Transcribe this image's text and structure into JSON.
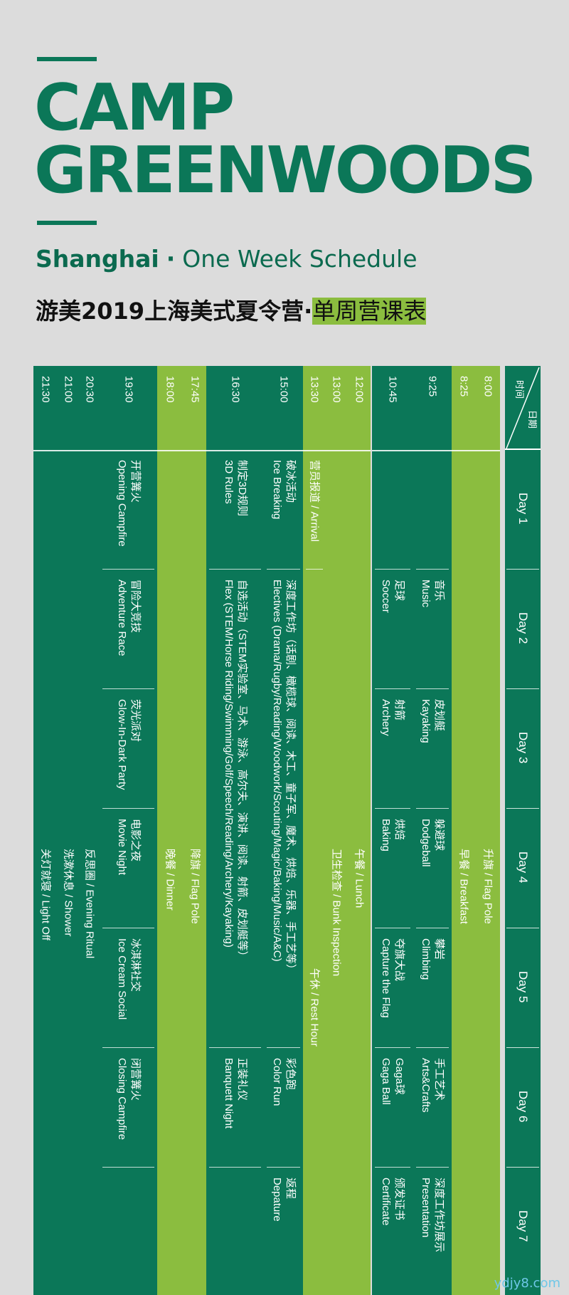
{
  "header": {
    "title_line1": "CAMP",
    "title_line2": "GREENWOODS",
    "city": "Shanghai",
    "dot": "·",
    "subtitle": "One Week Schedule",
    "cn_title": "游美2019上海美式夏令营",
    "cn_dot": "·",
    "cn_subtitle": "单周营课表"
  },
  "grid": {
    "corner_time": "时间",
    "corner_date": "日期",
    "days": [
      "Day 1",
      "Day 2",
      "Day 3",
      "Day 4",
      "Day 5",
      "Day 6",
      "Day 7"
    ],
    "columns": [
      {
        "time": "8:00",
        "color": "light",
        "cells": [
          {
            "span": [
              0,
              7
            ],
            "text": "",
            "offset": 2,
            "line1": "升旗 / Flag Pole"
          }
        ]
      },
      {
        "time": "8:25",
        "color": "light",
        "cells": [
          {
            "span": [
              0,
              7
            ],
            "text": "",
            "offset": 2,
            "line1": "早餐 / Breakfast"
          }
        ]
      },
      {
        "time": "9:25",
        "color": "dark",
        "cells": [
          {
            "span": [
              0,
              1
            ],
            "line1": ""
          },
          {
            "span": [
              1,
              2
            ],
            "line1": "音乐",
            "line2": "Music"
          },
          {
            "span": [
              2,
              3
            ],
            "line1": "皮划艇",
            "line2": "Kayaking"
          },
          {
            "span": [
              3,
              4
            ],
            "line1": "躲避球",
            "line2": "Dodgeball"
          },
          {
            "span": [
              4,
              5
            ],
            "line1": "攀岩",
            "line2": "Climbing"
          },
          {
            "span": [
              5,
              6
            ],
            "line1": "手工艺术",
            "line2": "Arts&Crafts"
          },
          {
            "span": [
              6,
              7
            ],
            "line1": "深度工作坊展示",
            "line2": "Presentation"
          }
        ]
      },
      {
        "time": "10:45",
        "color": "dark",
        "cells": [
          {
            "span": [
              0,
              1
            ],
            "line1": ""
          },
          {
            "span": [
              1,
              2
            ],
            "line1": "足球",
            "line2": "Soccer"
          },
          {
            "span": [
              2,
              3
            ],
            "line1": "射箭",
            "line2": "Archery"
          },
          {
            "span": [
              3,
              4
            ],
            "line1": "烘焙",
            "line2": "Baking"
          },
          {
            "span": [
              4,
              5
            ],
            "line1": "夺旗大战",
            "line2": "Capture the Flag"
          },
          {
            "span": [
              5,
              6
            ],
            "line1": "Gaga球",
            "line2": "Gaga Ball"
          },
          {
            "span": [
              6,
              7
            ],
            "line1": "颁发证书",
            "line2": "Certificate"
          }
        ]
      },
      {
        "time": "12:00",
        "color": "light",
        "cells": [
          {
            "span": [
              0,
              7
            ],
            "offset": 2,
            "line1": "午餐 / Lunch"
          }
        ]
      },
      {
        "time": "13:00",
        "color": "light",
        "cells": [
          {
            "span": [
              0,
              7
            ],
            "offset": 2,
            "line1": "卫生检查 / Bunk Inspection"
          }
        ]
      },
      {
        "time": "13:30",
        "color": "light",
        "cells": [
          {
            "span": [
              0,
              1
            ],
            "line1": "营员报道 / Arrival"
          },
          {
            "span": [
              1,
              7
            ],
            "offset": 2,
            "line1": "午休 / Rest Hour"
          }
        ]
      },
      {
        "time": "15:00",
        "color": "dark",
        "cells": [
          {
            "span": [
              0,
              1
            ],
            "line1": "破冰活动",
            "line2": "Ice Breaking"
          },
          {
            "span": [
              1,
              5
            ],
            "line1": "深度工作坊（话剧、橄榄球、阅读、木工、童子军、魔术、烘焙、乐器、手工艺等）",
            "line2": "Electives (Drama/Rugby/Reading/Woodwork/Scouting/Magic/Baking/Music/A&C)"
          },
          {
            "span": [
              5,
              6
            ],
            "line1": "彩色跑",
            "line2": "Color Run"
          },
          {
            "span": [
              6,
              7
            ],
            "line1": "返程",
            "line2": "Depature"
          }
        ]
      },
      {
        "time": "16:30",
        "color": "dark",
        "cells": [
          {
            "span": [
              0,
              1
            ],
            "line1": "制定3D规则",
            "line2": "3D Rules"
          },
          {
            "span": [
              1,
              5
            ],
            "line1": "自选活动（STEM实验室、马术、游泳、高尔夫、演讲、阅读、射箭、皮划艇等）",
            "line2": "Flex (STEM/Horse Riding/Swimming/Golf/Speech/Reading/Archery/Kayaking)"
          },
          {
            "span": [
              5,
              6
            ],
            "line1": "正装礼仪",
            "line2": "Banquett Night"
          },
          {
            "span": [
              6,
              7
            ],
            "line1": ""
          }
        ]
      },
      {
        "time": "17:45",
        "color": "light",
        "cells": [
          {
            "span": [
              0,
              7
            ],
            "offset": 2,
            "line1": "降旗 / Flag Pole"
          }
        ]
      },
      {
        "time": "18:00",
        "color": "light",
        "cells": [
          {
            "span": [
              0,
              7
            ],
            "offset": 2,
            "line1": "晚餐 / Dinner"
          }
        ]
      },
      {
        "time": "19:30",
        "color": "dark",
        "cells": [
          {
            "span": [
              0,
              1
            ],
            "line1": "开营篝火",
            "line2": "Opening Campfire"
          },
          {
            "span": [
              1,
              2
            ],
            "line1": "冒险大竞技",
            "line2": "Adventure Race"
          },
          {
            "span": [
              2,
              3
            ],
            "line1": "荧光派对",
            "line2": "Glow-In-Dark Party"
          },
          {
            "span": [
              3,
              4
            ],
            "line1": "电影之夜",
            "line2": "Movie Night"
          },
          {
            "span": [
              4,
              5
            ],
            "line1": "冰淇淋社交",
            "line2": "Ice Cream Social"
          },
          {
            "span": [
              5,
              6
            ],
            "line1": "闭营篝火",
            "line2": "Closing Campfire"
          },
          {
            "span": [
              6,
              7
            ],
            "line1": ""
          }
        ]
      },
      {
        "time": "20:30",
        "color": "dark",
        "cells": [
          {
            "span": [
              0,
              7
            ],
            "offset": 2,
            "line1": "反思圈 / Evening Ritual"
          }
        ]
      },
      {
        "time": "21:00",
        "color": "dark",
        "cells": [
          {
            "span": [
              0,
              7
            ],
            "offset": 2,
            "line1": "洗漱休息 / Shower"
          }
        ]
      },
      {
        "time": "21:30",
        "color": "dark",
        "cells": [
          {
            "span": [
              0,
              7
            ],
            "offset": 2,
            "line1": "关灯就寝 / Light Off"
          }
        ]
      }
    ]
  },
  "watermark": "ydjy8.com",
  "colors": {
    "dark": "#0b7758",
    "light": "#8bbd3f",
    "background": "#dcdcdc"
  }
}
